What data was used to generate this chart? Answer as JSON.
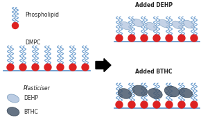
{
  "bg_color": "#ffffff",
  "line_color": "#6699cc",
  "head_color": "#dd2222",
  "dehp_color": "#b0c4de",
  "bthc_color": "#4a5a6e",
  "text_color": "#222222",
  "title_phospholipid": "Phospholipid",
  "title_dmpc": "DMPC",
  "title_plasticiser": "Plasticiser",
  "title_dehp": "DEHP",
  "title_bthc": "BTHC",
  "title_added_dehp": "Added DEHP",
  "title_added_bthc": "Added BTHC",
  "figsize": [
    2.9,
    1.89
  ],
  "dpi": 100
}
